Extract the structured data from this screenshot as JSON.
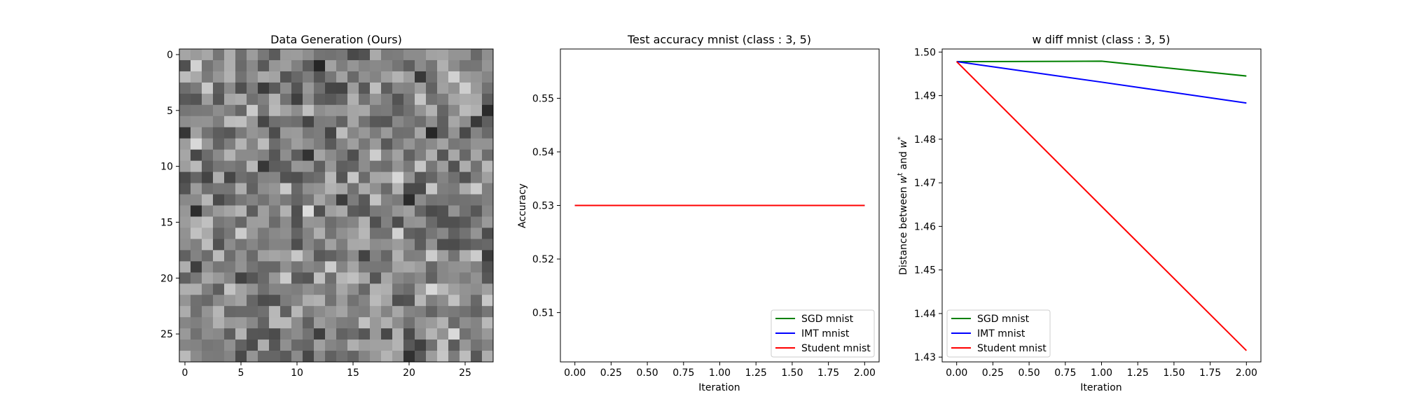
{
  "chart_data": [
    {
      "type": "heatmap",
      "title": "Data Generation (Ours)",
      "colormap": "gray",
      "rows": 28,
      "cols": 28,
      "xticks": [
        0,
        5,
        10,
        15,
        20,
        25
      ],
      "yticks": [
        0,
        5,
        10,
        15,
        20,
        25
      ],
      "xlim": [
        -0.5,
        27.5
      ],
      "ylim": [
        27.5,
        -0.5
      ],
      "noise_seed": 12345
    },
    {
      "type": "line",
      "title": "Test accuracy mnist (class : 3, 5)",
      "xlabel": "Iteration",
      "ylabel": "Accuracy",
      "xlim": [
        -0.1,
        2.1
      ],
      "ylim": [
        0.5008,
        0.5592
      ],
      "xticks": [
        0.0,
        0.25,
        0.5,
        0.75,
        1.0,
        1.25,
        1.5,
        1.75,
        2.0
      ],
      "xtick_labels": [
        "0.00",
        "0.25",
        "0.50",
        "0.75",
        "1.00",
        "1.25",
        "1.50",
        "1.75",
        "2.00"
      ],
      "yticks": [
        0.51,
        0.52,
        0.53,
        0.54,
        0.55
      ],
      "ytick_labels": [
        "0.51",
        "0.52",
        "0.53",
        "0.54",
        "0.55"
      ],
      "legend_position": "lower right",
      "series": [
        {
          "name": "SGD mnist",
          "color": "#008000",
          "x": [
            0,
            1,
            2
          ],
          "y": [
            0.53,
            0.53,
            0.53
          ]
        },
        {
          "name": "IMT mnist",
          "color": "#0000ff",
          "x": [
            0,
            1,
            2
          ],
          "y": [
            0.53,
            0.53,
            0.53
          ]
        },
        {
          "name": "Student mnist",
          "color": "#ff0000",
          "x": [
            0,
            1,
            2
          ],
          "y": [
            0.53,
            0.53,
            0.53
          ]
        }
      ]
    },
    {
      "type": "line",
      "title": "w diff mnist (class : 3, 5)",
      "xlabel": "Iteration",
      "ylabel": "Distance between w^t and w^*",
      "xlim": [
        -0.1,
        2.1
      ],
      "ylim": [
        1.4289,
        1.5007
      ],
      "xticks": [
        0.0,
        0.25,
        0.5,
        0.75,
        1.0,
        1.25,
        1.5,
        1.75,
        2.0
      ],
      "xtick_labels": [
        "0.00",
        "0.25",
        "0.50",
        "0.75",
        "1.00",
        "1.25",
        "1.50",
        "1.75",
        "2.00"
      ],
      "yticks": [
        1.43,
        1.44,
        1.45,
        1.46,
        1.47,
        1.48,
        1.49,
        1.5
      ],
      "ytick_labels": [
        "1.43",
        "1.44",
        "1.45",
        "1.46",
        "1.47",
        "1.48",
        "1.49",
        "1.50"
      ],
      "legend_position": "lower left",
      "series": [
        {
          "name": "SGD mnist",
          "color": "#008000",
          "x": [
            0,
            1,
            2
          ],
          "y": [
            1.4978,
            1.4979,
            1.4945
          ]
        },
        {
          "name": "IMT mnist",
          "color": "#0000ff",
          "x": [
            0,
            1,
            2
          ],
          "y": [
            1.4978,
            1.4931,
            1.4883
          ]
        },
        {
          "name": "Student mnist",
          "color": "#ff0000",
          "x": [
            0,
            1,
            2
          ],
          "y": [
            1.4978,
            1.4646,
            1.4315
          ]
        }
      ]
    }
  ]
}
